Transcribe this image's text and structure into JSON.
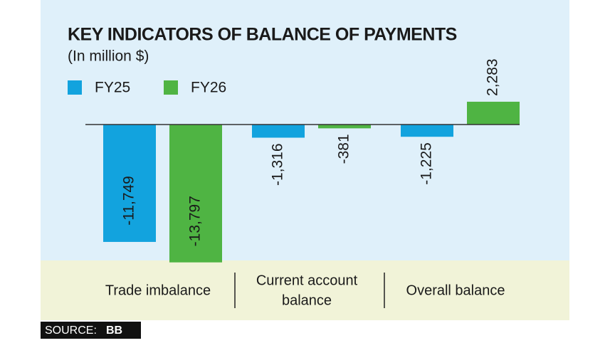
{
  "chart_data": {
    "type": "bar",
    "title": "KEY INDICATORS OF BALANCE OF PAYMENTS",
    "subtitle": "(In million $)",
    "categories": [
      [
        "Trade imbalance"
      ],
      [
        "Current account",
        "balance"
      ],
      [
        "Overall balance"
      ]
    ],
    "series": [
      {
        "name": "FY25",
        "color": "#12a3de",
        "values": [
          -11749,
          -1316,
          -1225
        ],
        "value_labels": [
          "-11,749",
          "-1,316",
          "-1,225"
        ]
      },
      {
        "name": "FY26",
        "color": "#4fb443",
        "values": [
          -13797,
          -381,
          2283
        ],
        "value_labels": [
          "-13,797",
          "-381",
          "2,283"
        ]
      }
    ],
    "source_label": "SOURCE:",
    "source": "BB"
  }
}
